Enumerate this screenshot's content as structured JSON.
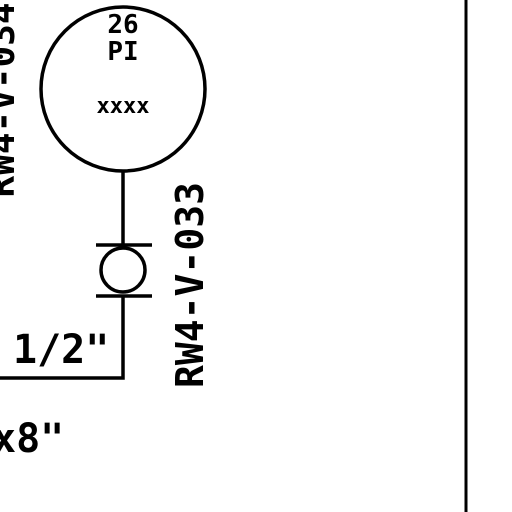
{
  "instrument": {
    "number": "26",
    "type": "PI",
    "tag": "xxxx"
  },
  "valve": {
    "tag": "RW4-V-033"
  },
  "pipe": {
    "size_label": "1/2\""
  },
  "partial_texts": {
    "left_vertical": "RW4-V-034",
    "bottom_left": "x8\""
  },
  "colors": {
    "line": "#000000",
    "background": "#ffffff"
  }
}
